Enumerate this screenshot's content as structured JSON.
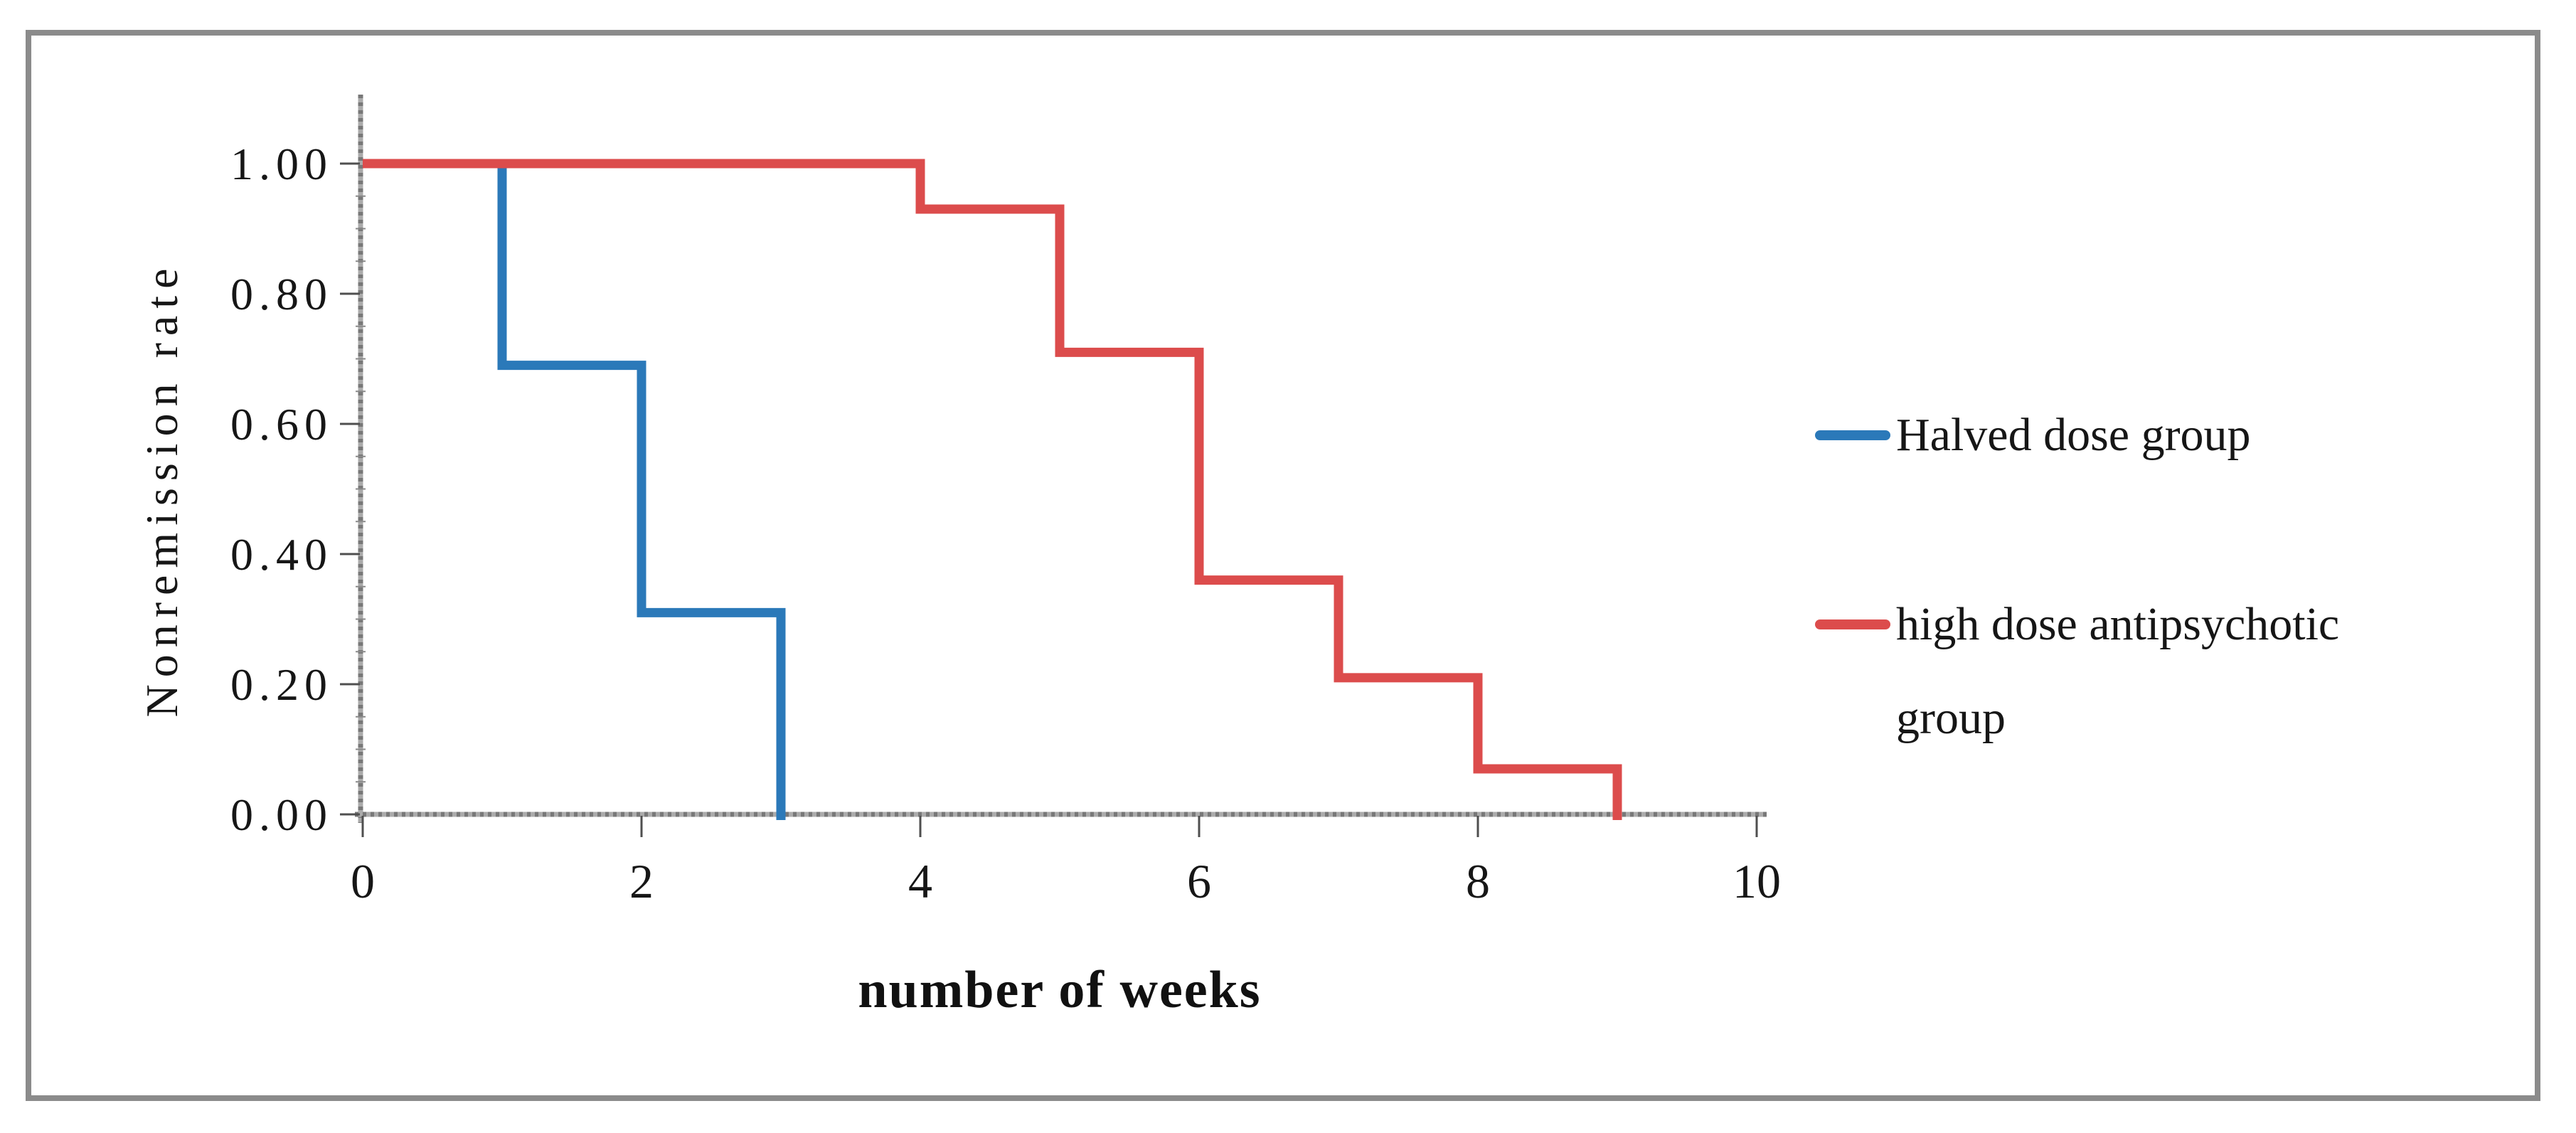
{
  "chart_data": {
    "type": "line",
    "subtype": "step",
    "title": "",
    "xlabel": "number of weeks",
    "ylabel": "Nonremission rate",
    "xlim": [
      0,
      10
    ],
    "ylim": [
      0.0,
      1.0
    ],
    "xticks": [
      0,
      2,
      4,
      6,
      8,
      10
    ],
    "ytick_labels": [
      "1.00",
      "0.80",
      "0.60",
      "0.40",
      "0.20",
      "0.00"
    ],
    "ytick_values": [
      1.0,
      0.8,
      0.6,
      0.4,
      0.2,
      0.0
    ],
    "grid": false,
    "legend_position": "right",
    "series": [
      {
        "name": "Halved dose group",
        "color": "#2B79B9",
        "steps": [
          {
            "x": 0,
            "y": 1.0
          },
          {
            "x": 1,
            "y": 0.69
          },
          {
            "x": 2,
            "y": 0.31
          },
          {
            "x": 3,
            "y": 0.0
          }
        ]
      },
      {
        "name": "high dose antipsychotic group",
        "color": "#DC4C4C",
        "steps": [
          {
            "x": 0,
            "y": 1.0
          },
          {
            "x": 4,
            "y": 0.93
          },
          {
            "x": 5,
            "y": 0.71
          },
          {
            "x": 6,
            "y": 0.36
          },
          {
            "x": 7,
            "y": 0.21
          },
          {
            "x": 8,
            "y": 0.07
          },
          {
            "x": 9,
            "y": 0.0
          }
        ]
      }
    ]
  }
}
